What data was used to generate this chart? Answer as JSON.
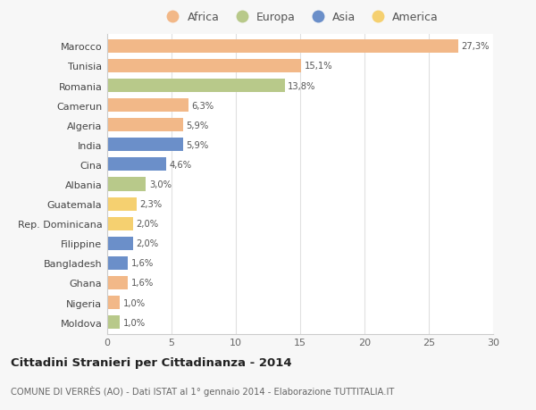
{
  "categories": [
    "Marocco",
    "Tunisia",
    "Romania",
    "Camerun",
    "Algeria",
    "India",
    "Cina",
    "Albania",
    "Guatemala",
    "Rep. Dominicana",
    "Filippine",
    "Bangladesh",
    "Ghana",
    "Nigeria",
    "Moldova"
  ],
  "values": [
    27.3,
    15.1,
    13.8,
    6.3,
    5.9,
    5.9,
    4.6,
    3.0,
    2.3,
    2.0,
    2.0,
    1.6,
    1.6,
    1.0,
    1.0
  ],
  "labels": [
    "27,3%",
    "15,1%",
    "13,8%",
    "6,3%",
    "5,9%",
    "5,9%",
    "4,6%",
    "3,0%",
    "2,3%",
    "2,0%",
    "2,0%",
    "1,6%",
    "1,6%",
    "1,0%",
    "1,0%"
  ],
  "colors": [
    "#f2b888",
    "#f2b888",
    "#b8c98a",
    "#f2b888",
    "#f2b888",
    "#6b8fc9",
    "#6b8fc9",
    "#b8c98a",
    "#f5d070",
    "#f5d070",
    "#6b8fc9",
    "#6b8fc9",
    "#f2b888",
    "#f2b888",
    "#b8c98a"
  ],
  "legend_labels": [
    "Africa",
    "Europa",
    "Asia",
    "America"
  ],
  "legend_colors": [
    "#f2b888",
    "#b8c98a",
    "#6b8fc9",
    "#f5d070"
  ],
  "title": "Cittadini Stranieri per Cittadinanza - 2014",
  "subtitle": "COMUNE DI VERRÈS (AO) - Dati ISTAT al 1° gennaio 2014 - Elaborazione TUTTITALIA.IT",
  "xlim": [
    0,
    30
  ],
  "xticks": [
    0,
    5,
    10,
    15,
    20,
    25,
    30
  ],
  "background_color": "#f7f7f7",
  "plot_background": "#ffffff",
  "grid_color": "#e0e0e0"
}
